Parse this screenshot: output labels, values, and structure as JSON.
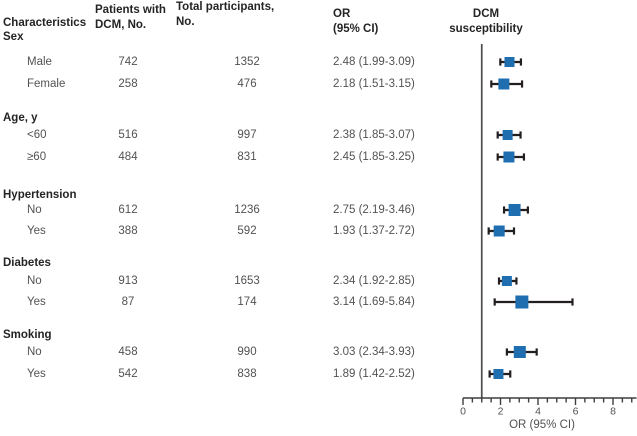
{
  "header": {
    "characteristics": "Characteristics",
    "patients": "Patients with\nDCM, No.",
    "total": "Total participants,\nNo.",
    "or": "OR\n(95% CI)",
    "plot": "DCM\nsusceptibility"
  },
  "colors": {
    "marker": "#1f6eb0",
    "bar": "#231f20",
    "axis": "#3e3e40",
    "reference_line": "#4d4d4f",
    "text": "#525254",
    "bold_text": "#242426"
  },
  "chart_data": {
    "type": "forest",
    "title": "DCM susceptibility",
    "xlabel": "OR (95% CI)",
    "xlim": [
      0,
      9
    ],
    "x_ticks": [
      0,
      2,
      4,
      6,
      8
    ],
    "x_minor_step": 0.5,
    "reference_line": 1,
    "columns": [
      "Characteristics",
      "Patients with DCM, No.",
      "Total participants, No.",
      "OR (95% CI)"
    ],
    "groups": [
      {
        "label": "Sex",
        "rows": [
          {
            "label": "Male",
            "patients": "742",
            "total": "1352",
            "or_text": "2.48 (1.99-3.09)",
            "or": 2.48,
            "ci_low": 1.99,
            "ci_high": 3.09,
            "size": 10
          },
          {
            "label": "Female",
            "patients": "258",
            "total": "476",
            "or_text": "2.18 (1.51-3.15)",
            "or": 2.18,
            "ci_low": 1.51,
            "ci_high": 3.15,
            "size": 11
          }
        ]
      },
      {
        "label": "Age, y",
        "rows": [
          {
            "label": "<60",
            "patients": "516",
            "total": "997",
            "or_text": "2.38 (1.85-3.07)",
            "or": 2.38,
            "ci_low": 1.85,
            "ci_high": 3.07,
            "size": 10
          },
          {
            "label": "≥60",
            "patients": "484",
            "total": "831",
            "or_text": "2.45 (1.85-3.25)",
            "or": 2.45,
            "ci_low": 1.85,
            "ci_high": 3.25,
            "size": 11
          }
        ]
      },
      {
        "label": "Hypertension",
        "rows": [
          {
            "label": "No",
            "patients": "612",
            "total": "1236",
            "or_text": "2.75 (2.19-3.46)",
            "or": 2.75,
            "ci_low": 2.19,
            "ci_high": 3.46,
            "size": 12
          },
          {
            "label": "Yes",
            "patients": "388",
            "total": "592",
            "or_text": "1.93 (1.37-2.72)",
            "or": 1.93,
            "ci_low": 1.37,
            "ci_high": 2.72,
            "size": 11
          }
        ]
      },
      {
        "label": "Diabetes",
        "rows": [
          {
            "label": "No",
            "patients": "913",
            "total": "1653",
            "or_text": "2.34 (1.92-2.85)",
            "or": 2.34,
            "ci_low": 1.92,
            "ci_high": 2.85,
            "size": 10
          },
          {
            "label": "Yes",
            "patients": "87",
            "total": "174",
            "or_text": "3.14 (1.69-5.84)",
            "or": 3.14,
            "ci_low": 1.69,
            "ci_high": 5.84,
            "size": 13
          }
        ]
      },
      {
        "label": "Smoking",
        "rows": [
          {
            "label": "No",
            "patients": "458",
            "total": "990",
            "or_text": "3.03 (2.34-3.93)",
            "or": 3.03,
            "ci_low": 2.34,
            "ci_high": 3.93,
            "size": 12
          },
          {
            "label": "Yes",
            "patients": "542",
            "total": "838",
            "or_text": "1.89 (1.42-2.52)",
            "or": 1.89,
            "ci_low": 1.42,
            "ci_high": 2.52,
            "size": 10
          }
        ]
      }
    ]
  }
}
